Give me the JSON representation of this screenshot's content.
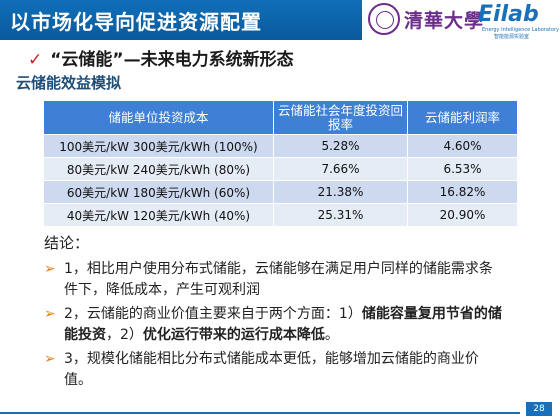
{
  "header": {
    "title": "以市场化导向促进资源配置",
    "logo_university": "清華大學",
    "logo_lab": "Eilab",
    "logo_lab_en": "Energy Intelligence Laboratory",
    "logo_lab_cn": "智能能源实验室"
  },
  "subtitle": {
    "check": "✓",
    "text": "“云储能”—未来电力系统新形态"
  },
  "section_title": "云储能效益模拟",
  "table": {
    "headers": [
      "储能单位投资成本",
      "云储能社会年度投资回报率",
      "云储能利润率"
    ],
    "rows": [
      [
        "100美元/kW 300美元/kWh (100%)",
        "5.28%",
        "4.60%"
      ],
      [
        "80美元/kW 240美元/kWh (80%)",
        "7.66%",
        "6.53%"
      ],
      [
        "60美元/kW 180美元/kWh (60%)",
        "21.38%",
        "16.82%"
      ],
      [
        "40美元/kW 120美元/kWh (40%)",
        "25.31%",
        "20.90%"
      ]
    ]
  },
  "conclusion": {
    "label": "结论：",
    "bullet": "➢",
    "item1": "1，相比用户使用分布式储能，云储能够在满足用户同样的储能需求条件下，降低成本，产生可观利润",
    "item2_a": "2，云储能的商业价值主要来自于两个方面：1）",
    "item2_b": "储能容量复用节省的储能投资",
    "item2_c": "，2）",
    "item2_d": "优化运行带来的运行成本降低",
    "item2_e": "。",
    "item3": "3，规模化储能相比分布式储能成本更低，能够增加云储能的商业价值。"
  },
  "page_number": "28"
}
